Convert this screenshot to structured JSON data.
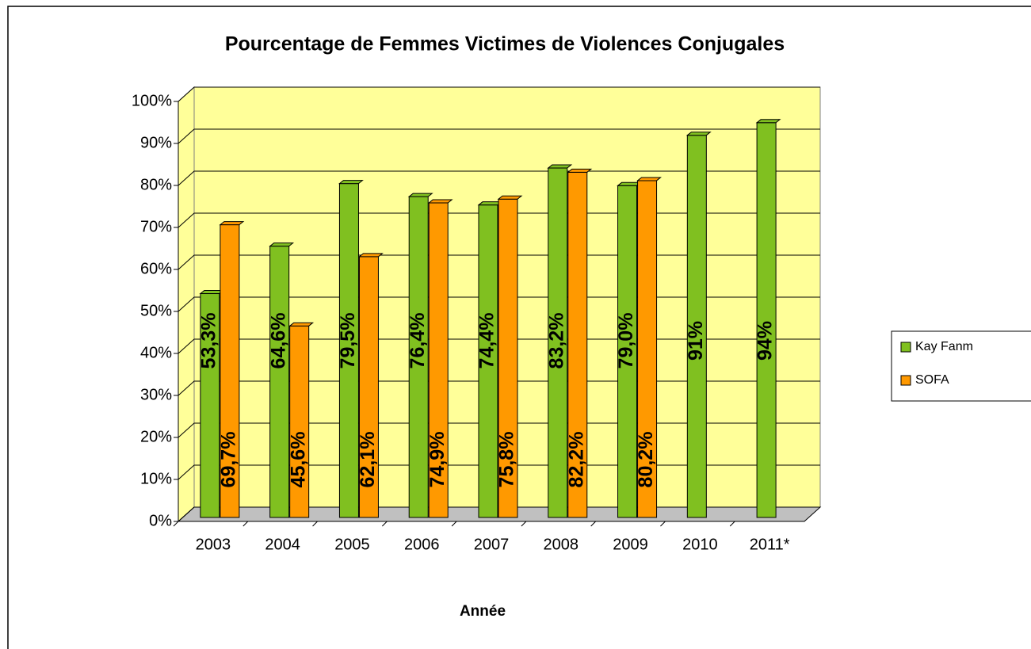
{
  "chart_data": {
    "type": "bar3d",
    "title": "Pourcentage de Femmes Victimes de Violences Conjugales",
    "x_label": "Année",
    "categories": [
      "2003",
      "2004",
      "2005",
      "2006",
      "2007",
      "2008",
      "2009",
      "2010",
      "2011*"
    ],
    "series": [
      {
        "name": "Kay Fanm",
        "color": "#80c020",
        "values": [
          53.3,
          64.6,
          79.5,
          76.4,
          74.4,
          83.2,
          79.0,
          91,
          94
        ],
        "value_labels": [
          "53,3%",
          "64,6%",
          "79,5%",
          "76,4%",
          "74,4%",
          "83,2%",
          "79,0%",
          "91%",
          "94%"
        ]
      },
      {
        "name": "SOFA",
        "color": "#ff9900",
        "values": [
          69.7,
          45.6,
          62.1,
          74.9,
          75.8,
          82.2,
          80.2,
          null,
          null
        ],
        "value_labels": [
          "69,7%",
          "45,6%",
          "62,1%",
          "74,9%",
          "75,8%",
          "82,2%",
          "80,2%",
          null,
          null
        ]
      }
    ],
    "ylim": [
      0,
      100
    ],
    "yticks": [
      {
        "value": 0,
        "label": "0%"
      },
      {
        "value": 10,
        "label": "10%"
      },
      {
        "value": 20,
        "label": "20%"
      },
      {
        "value": 30,
        "label": "30%"
      },
      {
        "value": 40,
        "label": "40%"
      },
      {
        "value": 50,
        "label": "50%"
      },
      {
        "value": 60,
        "label": "60%"
      },
      {
        "value": 70,
        "label": "70%"
      },
      {
        "value": 80,
        "label": "80%"
      },
      {
        "value": 90,
        "label": "90%"
      },
      {
        "value": 100,
        "label": "100%"
      }
    ],
    "grid": true,
    "legend": "right",
    "wall_color": "#ffff99",
    "floor_color": "#c0c0c0"
  }
}
